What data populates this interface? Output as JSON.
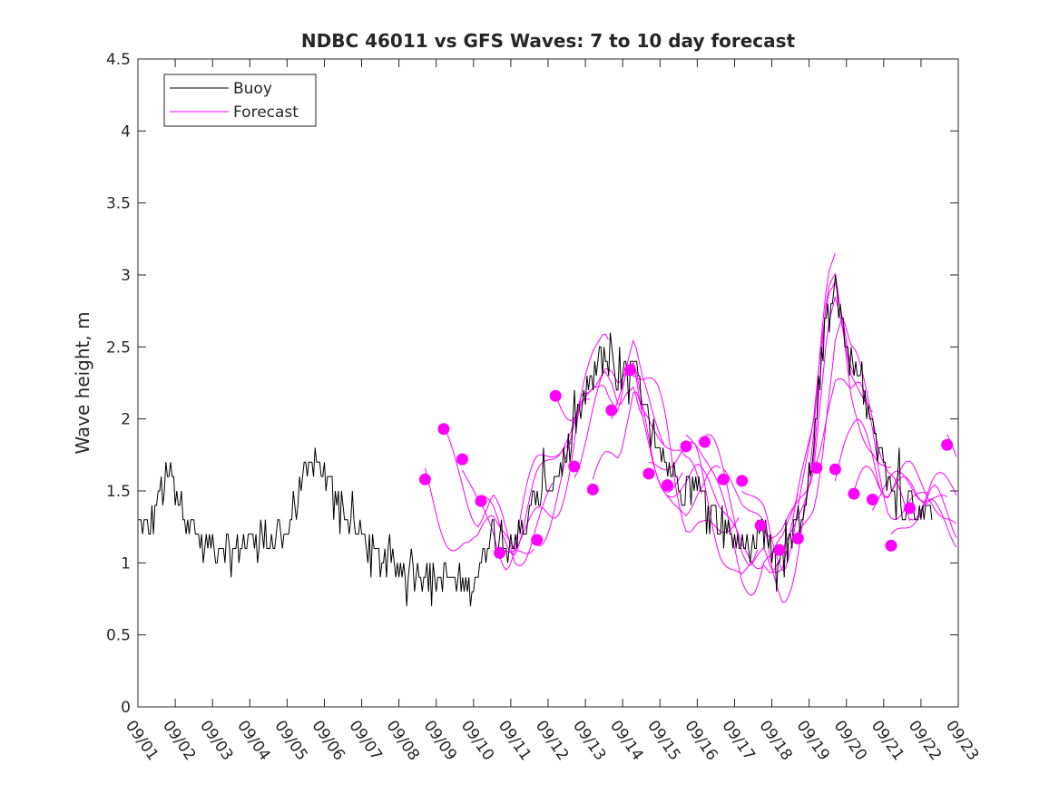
{
  "chart_data": {
    "type": "line",
    "title": "NDBC 46011 vs GFS Waves: 7 to 10 day forecast",
    "xlabel": "",
    "ylabel": "Wave height, m",
    "xlim": [
      0,
      22
    ],
    "ylim": [
      0,
      4.5
    ],
    "yticks": [
      "0",
      "0.5",
      "1",
      "1.5",
      "2",
      "2.5",
      "3",
      "3.5",
      "4",
      "4.5"
    ],
    "ytick_values": [
      0,
      0.5,
      1,
      1.5,
      2,
      2.5,
      3,
      3.5,
      4,
      4.5
    ],
    "xtick_labels": [
      "09/01",
      "09/02",
      "09/03",
      "09/04",
      "09/05",
      "09/06",
      "09/07",
      "09/08",
      "09/09",
      "09/10",
      "09/11",
      "09/12",
      "09/13",
      "09/14",
      "09/15",
      "09/16",
      "09/17",
      "09/18",
      "09/19",
      "09/20",
      "09/21",
      "09/22",
      "09/23"
    ],
    "legend": {
      "location": "top-left",
      "entries": [
        {
          "label": "Buoy",
          "color": "#000000"
        },
        {
          "label": "Forecast",
          "color": "#ff00ff"
        }
      ]
    },
    "colors": {
      "buoy": "#000000",
      "forecast": "#ff00ff",
      "axis": "#262626"
    },
    "buoy_anchor_points": [
      [
        0,
        1.25
      ],
      [
        0.3,
        1.2
      ],
      [
        0.6,
        1.5
      ],
      [
        0.9,
        1.6
      ],
      [
        1.2,
        1.4
      ],
      [
        1.5,
        1.2
      ],
      [
        1.8,
        1.1
      ],
      [
        2.2,
        1.15
      ],
      [
        2.6,
        1.1
      ],
      [
        3.0,
        1.15
      ],
      [
        3.3,
        1.2
      ],
      [
        3.6,
        1.15
      ],
      [
        3.8,
        1.25
      ],
      [
        4.0,
        1.2
      ],
      [
        4.2,
        1.4
      ],
      [
        4.5,
        1.6
      ],
      [
        4.8,
        1.7
      ],
      [
        5.0,
        1.6
      ],
      [
        5.3,
        1.5
      ],
      [
        5.6,
        1.3
      ],
      [
        5.9,
        1.2
      ],
      [
        6.2,
        1.1
      ],
      [
        6.6,
        1.0
      ],
      [
        7.0,
        0.95
      ],
      [
        7.5,
        0.95
      ],
      [
        7.8,
        0.9
      ],
      [
        8.2,
        0.9
      ],
      [
        8.6,
        0.85
      ],
      [
        8.9,
        0.85
      ],
      [
        9.1,
        0.9
      ],
      [
        9.3,
        1.1
      ],
      [
        9.5,
        1.25
      ],
      [
        9.8,
        1.2
      ],
      [
        10.1,
        1.15
      ],
      [
        10.4,
        1.3
      ],
      [
        10.7,
        1.45
      ],
      [
        11.0,
        1.55
      ],
      [
        11.3,
        1.65
      ],
      [
        11.6,
        1.8
      ],
      [
        11.9,
        2.1
      ],
      [
        12.2,
        2.3
      ],
      [
        12.5,
        2.45
      ],
      [
        12.7,
        2.35
      ],
      [
        12.9,
        2.2
      ],
      [
        13.1,
        2.35
      ],
      [
        13.3,
        2.4
      ],
      [
        13.5,
        2.1
      ],
      [
        13.8,
        1.9
      ],
      [
        14.1,
        1.75
      ],
      [
        14.4,
        1.6
      ],
      [
        14.7,
        1.5
      ],
      [
        15.0,
        1.55
      ],
      [
        15.3,
        1.45
      ],
      [
        15.6,
        1.3
      ],
      [
        15.9,
        1.2
      ],
      [
        16.2,
        1.1
      ],
      [
        16.5,
        1.15
      ],
      [
        16.8,
        1.25
      ],
      [
        17.0,
        1.1
      ],
      [
        17.3,
        1.05
      ],
      [
        17.6,
        1.2
      ],
      [
        17.9,
        1.45
      ],
      [
        18.1,
        1.7
      ],
      [
        18.3,
        2.3
      ],
      [
        18.5,
        2.8
      ],
      [
        18.7,
        2.95
      ],
      [
        18.9,
        2.7
      ],
      [
        19.1,
        2.4
      ],
      [
        19.3,
        2.3
      ],
      [
        19.5,
        2.15
      ],
      [
        19.7,
        1.95
      ],
      [
        19.9,
        1.7
      ],
      [
        20.1,
        1.55
      ],
      [
        20.3,
        1.5
      ],
      [
        20.5,
        1.45
      ],
      [
        20.7,
        1.4
      ],
      [
        20.9,
        1.35
      ],
      [
        21.1,
        1.35
      ],
      [
        21.3,
        1.4
      ]
    ],
    "forecast_markers": [
      [
        7.7,
        1.58
      ],
      [
        8.2,
        1.93
      ],
      [
        8.7,
        1.72
      ],
      [
        9.2,
        1.43
      ],
      [
        9.7,
        1.07
      ],
      [
        10.7,
        1.16
      ],
      [
        11.2,
        2.16
      ],
      [
        11.7,
        1.67
      ],
      [
        12.2,
        1.51
      ],
      [
        12.7,
        2.06
      ],
      [
        13.2,
        2.34
      ],
      [
        13.7,
        1.62
      ],
      [
        14.2,
        1.54
      ],
      [
        14.7,
        1.81
      ],
      [
        15.2,
        1.84
      ],
      [
        15.7,
        1.58
      ],
      [
        16.2,
        1.57
      ],
      [
        16.7,
        1.26
      ],
      [
        17.2,
        1.09
      ],
      [
        17.7,
        1.17
      ],
      [
        18.2,
        1.66
      ],
      [
        18.7,
        1.65
      ],
      [
        19.2,
        1.48
      ],
      [
        19.7,
        1.44
      ],
      [
        20.2,
        1.12
      ],
      [
        20.7,
        1.38
      ],
      [
        21.7,
        1.82
      ]
    ]
  }
}
